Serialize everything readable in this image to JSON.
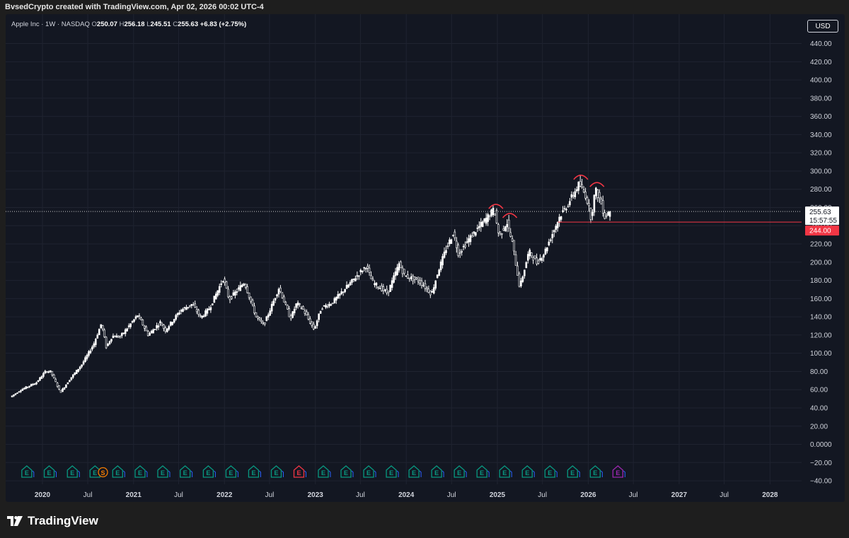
{
  "header": {
    "attribution": "BvsedCrypto created with TradingView.com, Apr 02, 2026 00:02 UTC-4"
  },
  "legend": {
    "symbol": "Apple Inc · 1W · NASDAQ",
    "o_label": "O",
    "o_value": "250.07",
    "h_label": "H",
    "h_value": "256.18",
    "l_label": "L",
    "l_value": "245.51",
    "c_label": "C",
    "c_value": "255.63",
    "change": "+6.83 (+2.75%)"
  },
  "currency_button": "USD",
  "footer": {
    "brand": "TradingView"
  },
  "colors": {
    "background": "#131722",
    "candle": "#ffffff",
    "grid": "#1f2330",
    "support_line": "#f23645",
    "earnings_green": "#089981",
    "dividend_orange": "#f57c00",
    "split_purple": "#9c27b0"
  },
  "chart_data": {
    "type": "candlestick",
    "timeframe": "1W",
    "y_range": [
      -45,
      450
    ],
    "y_ticks": [
      "440.00",
      "420.00",
      "400.00",
      "380.00",
      "360.00",
      "340.00",
      "320.00",
      "300.00",
      "280.00",
      "260.00",
      "240.00",
      "220.00",
      "200.00",
      "180.00",
      "160.00",
      "140.00",
      "120.00",
      "100.00",
      "80.00",
      "60.00",
      "40.00",
      "20.00",
      "0.0000",
      "−20.00",
      "−40.00"
    ],
    "y_tick_values": [
      440,
      420,
      400,
      380,
      360,
      340,
      320,
      300,
      280,
      260,
      240,
      220,
      200,
      180,
      160,
      140,
      120,
      100,
      80,
      60,
      40,
      20,
      0,
      -20,
      -40
    ],
    "x_ticks": [
      {
        "label": "2020",
        "t": "2020-01-01",
        "bold": true
      },
      {
        "label": "Jul",
        "t": "2020-07-01",
        "bold": false
      },
      {
        "label": "2021",
        "t": "2021-01-01",
        "bold": true
      },
      {
        "label": "Jul",
        "t": "2021-07-01",
        "bold": false
      },
      {
        "label": "2022",
        "t": "2022-01-01",
        "bold": true
      },
      {
        "label": "Jul",
        "t": "2022-07-01",
        "bold": false
      },
      {
        "label": "2023",
        "t": "2023-01-01",
        "bold": true
      },
      {
        "label": "Jul",
        "t": "2023-07-01",
        "bold": false
      },
      {
        "label": "2024",
        "t": "2024-01-01",
        "bold": true
      },
      {
        "label": "Jul",
        "t": "2024-07-01",
        "bold": false
      },
      {
        "label": "2025",
        "t": "2025-01-01",
        "bold": true
      },
      {
        "label": "Jul",
        "t": "2025-07-01",
        "bold": false
      },
      {
        "label": "2026",
        "t": "2026-01-01",
        "bold": true
      },
      {
        "label": "Jul",
        "t": "2026-07-01",
        "bold": false
      },
      {
        "label": "2027",
        "t": "2027-01-01",
        "bold": true
      },
      {
        "label": "Jul",
        "t": "2027-07-01",
        "bold": false
      },
      {
        "label": "2028",
        "t": "2028-01-01",
        "bold": true
      }
    ],
    "price_path": [
      [
        "2019-09-01",
        52
      ],
      [
        "2019-10-15",
        60
      ],
      [
        "2019-12-15",
        68
      ],
      [
        "2020-01-20",
        80
      ],
      [
        "2020-02-10",
        80
      ],
      [
        "2020-03-20",
        57
      ],
      [
        "2020-05-01",
        73
      ],
      [
        "2020-06-15",
        88
      ],
      [
        "2020-08-01",
        110
      ],
      [
        "2020-09-01",
        133
      ],
      [
        "2020-09-20",
        107
      ],
      [
        "2020-10-15",
        119
      ],
      [
        "2020-11-15",
        118
      ],
      [
        "2021-01-25",
        142
      ],
      [
        "2021-03-08",
        120
      ],
      [
        "2021-04-25",
        134
      ],
      [
        "2021-05-15",
        125
      ],
      [
        "2021-07-15",
        147
      ],
      [
        "2021-09-01",
        154
      ],
      [
        "2021-10-05",
        139
      ],
      [
        "2021-11-10",
        150
      ],
      [
        "2022-01-03",
        182
      ],
      [
        "2022-01-27",
        159
      ],
      [
        "2022-03-29",
        178
      ],
      [
        "2022-05-15",
        140
      ],
      [
        "2022-06-15",
        131
      ],
      [
        "2022-08-15",
        172
      ],
      [
        "2022-09-30",
        138
      ],
      [
        "2022-10-25",
        155
      ],
      [
        "2022-11-20",
        148
      ],
      [
        "2023-01-03",
        126
      ],
      [
        "2023-02-01",
        150
      ],
      [
        "2023-03-15",
        155
      ],
      [
        "2023-05-01",
        169
      ],
      [
        "2023-07-31",
        196
      ],
      [
        "2023-08-25",
        178
      ],
      [
        "2023-10-25",
        166
      ],
      [
        "2023-12-10",
        198
      ],
      [
        "2024-01-02",
        185
      ],
      [
        "2024-03-01",
        179
      ],
      [
        "2024-04-19",
        165
      ],
      [
        "2024-05-15",
        190
      ],
      [
        "2024-06-15",
        214
      ],
      [
        "2024-07-15",
        232
      ],
      [
        "2024-08-05",
        209
      ],
      [
        "2024-09-15",
        225
      ],
      [
        "2024-10-15",
        235
      ],
      [
        "2024-12-26",
        258
      ],
      [
        "2025-01-15",
        228
      ],
      [
        "2025-02-15",
        244
      ],
      [
        "2025-03-10",
        220
      ],
      [
        "2025-04-08",
        172
      ],
      [
        "2025-05-15",
        212
      ],
      [
        "2025-06-15",
        199
      ],
      [
        "2025-07-15",
        210
      ],
      [
        "2025-08-15",
        230
      ],
      [
        "2025-09-15",
        250
      ],
      [
        "2025-10-15",
        262
      ],
      [
        "2025-12-02",
        286
      ],
      [
        "2025-12-31",
        272
      ],
      [
        "2026-01-20",
        248
      ],
      [
        "2026-02-05",
        280
      ],
      [
        "2026-02-25",
        268
      ],
      [
        "2026-03-15",
        250
      ],
      [
        "2026-03-31",
        255.63
      ]
    ],
    "last_candle": {
      "open": 250.07,
      "high": 256.18,
      "low": 245.51,
      "close": 255.63
    },
    "last_price_label": "255.63",
    "countdown_label": "15:57:55",
    "support_level": 244,
    "support_label": "244.00",
    "support_from": "2025-09-01",
    "pattern_arcs": [
      {
        "t": "2024-12-26",
        "price": 258
      },
      {
        "t": "2025-02-20",
        "price": 248
      },
      {
        "t": "2025-12-02",
        "price": 290
      },
      {
        "t": "2026-02-05",
        "price": 282
      }
    ],
    "events": [
      {
        "t": "2019-10-30",
        "label": "E",
        "kind": "earnings"
      },
      {
        "t": "2020-01-28",
        "label": "E",
        "kind": "earnings"
      },
      {
        "t": "2020-04-30",
        "label": "E",
        "kind": "earnings"
      },
      {
        "t": "2020-07-30",
        "label": "E",
        "kind": "earnings"
      },
      {
        "t": "2020-08-31",
        "label": "S",
        "kind": "split"
      },
      {
        "t": "2020-10-29",
        "label": "E",
        "kind": "earnings"
      },
      {
        "t": "2021-01-27",
        "label": "E",
        "kind": "earnings"
      },
      {
        "t": "2021-04-28",
        "label": "E",
        "kind": "earnings"
      },
      {
        "t": "2021-07-27",
        "label": "E",
        "kind": "earnings"
      },
      {
        "t": "2021-10-28",
        "label": "E",
        "kind": "earnings"
      },
      {
        "t": "2022-01-27",
        "label": "E",
        "kind": "earnings"
      },
      {
        "t": "2022-04-28",
        "label": "E",
        "kind": "earnings"
      },
      {
        "t": "2022-07-28",
        "label": "E",
        "kind": "earnings"
      },
      {
        "t": "2022-10-27",
        "label": "E",
        "kind": "earnings_miss"
      },
      {
        "t": "2023-02-02",
        "label": "E",
        "kind": "earnings"
      },
      {
        "t": "2023-05-04",
        "label": "E",
        "kind": "earnings"
      },
      {
        "t": "2023-08-03",
        "label": "E",
        "kind": "earnings"
      },
      {
        "t": "2023-11-02",
        "label": "E",
        "kind": "earnings"
      },
      {
        "t": "2024-02-01",
        "label": "E",
        "kind": "earnings"
      },
      {
        "t": "2024-05-02",
        "label": "E",
        "kind": "earnings"
      },
      {
        "t": "2024-08-01",
        "label": "E",
        "kind": "earnings"
      },
      {
        "t": "2024-10-31",
        "label": "E",
        "kind": "earnings"
      },
      {
        "t": "2025-01-30",
        "label": "E",
        "kind": "earnings"
      },
      {
        "t": "2025-05-01",
        "label": "E",
        "kind": "earnings"
      },
      {
        "t": "2025-07-31",
        "label": "E",
        "kind": "earnings"
      },
      {
        "t": "2025-10-30",
        "label": "E",
        "kind": "earnings"
      },
      {
        "t": "2026-01-29",
        "label": "E",
        "kind": "earnings"
      },
      {
        "t": "2026-04-30",
        "label": "E",
        "kind": "upcoming"
      }
    ]
  }
}
